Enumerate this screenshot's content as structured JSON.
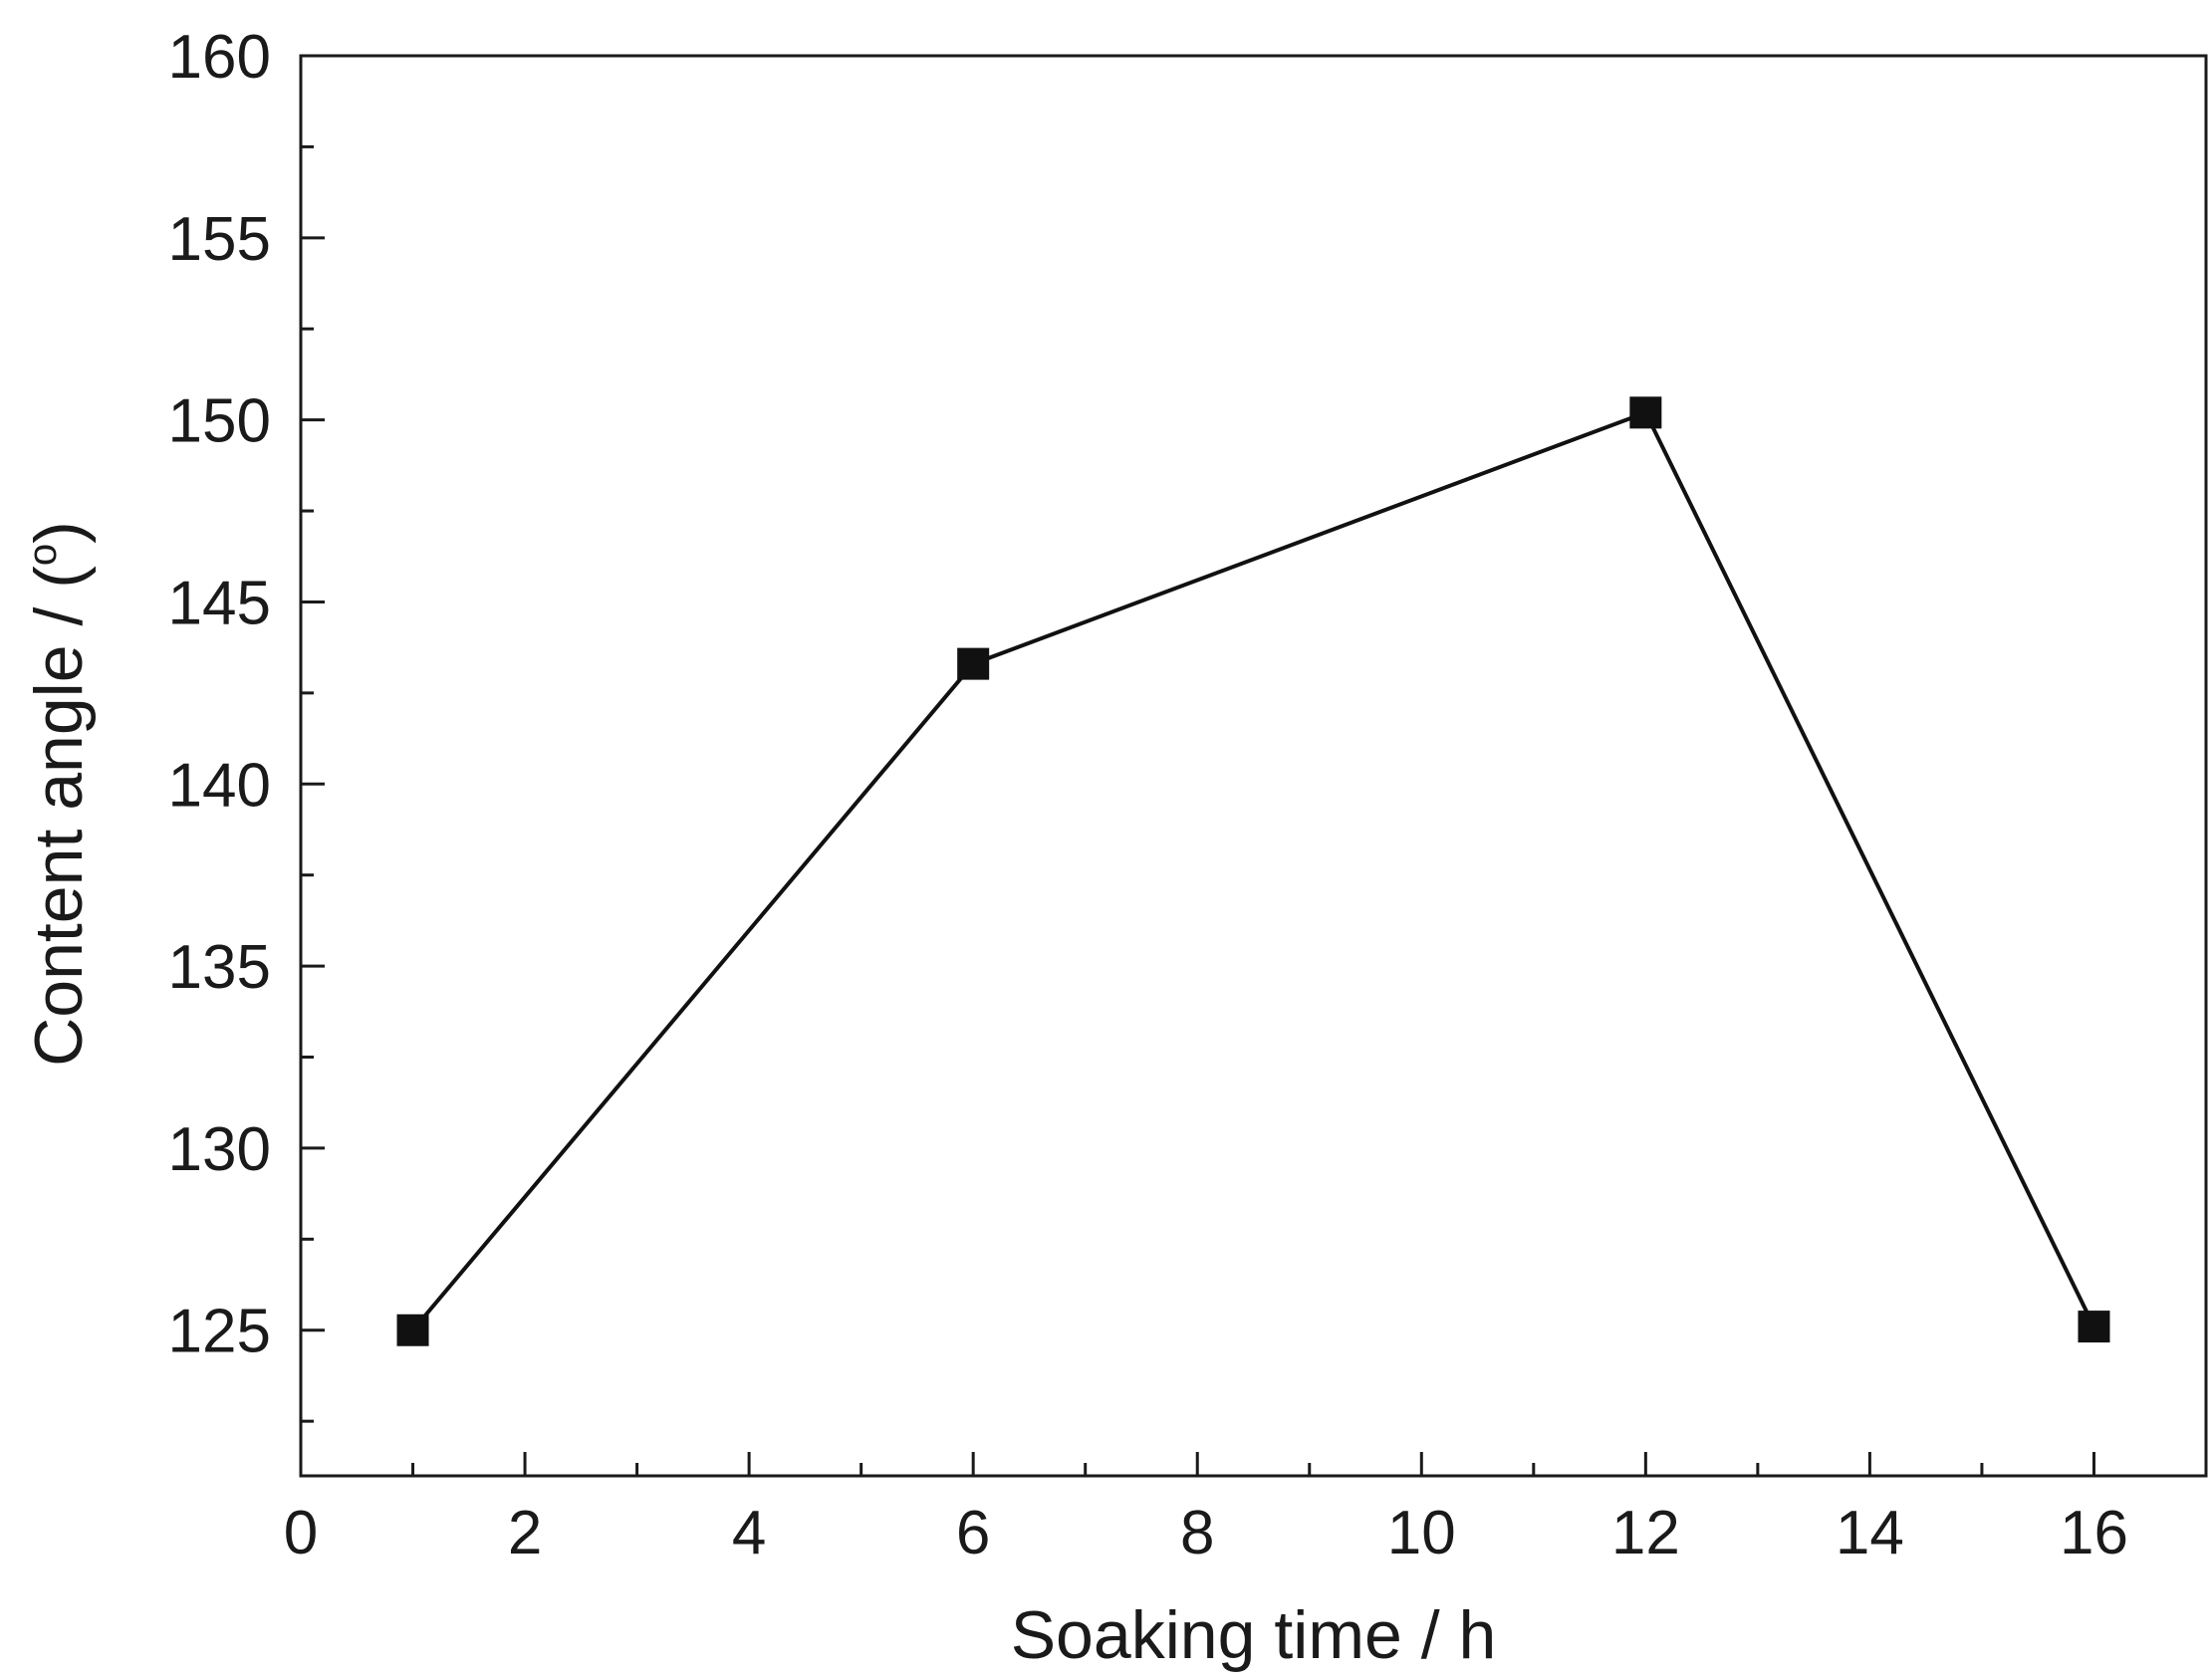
{
  "chart_data": {
    "type": "line",
    "title": "",
    "xlabel": "Soaking time / h",
    "ylabel_prefix": "Content angle / (",
    "ylabel_sup": "o",
    "ylabel_suffix": ")",
    "xlim": [
      0,
      17
    ],
    "ylim": [
      121,
      160
    ],
    "x_ticks": [
      0,
      2,
      4,
      6,
      8,
      10,
      12,
      14,
      16
    ],
    "x_tick_labels": [
      "0",
      "2",
      "4",
      "6",
      "8",
      "10",
      "12",
      "14",
      "16"
    ],
    "x_minor_ticks": [
      1,
      3,
      5,
      7,
      9,
      11,
      13,
      15
    ],
    "y_ticks": [
      125,
      130,
      135,
      140,
      145,
      150,
      155,
      160
    ],
    "y_tick_labels": [
      "125",
      "130",
      "135",
      "140",
      "145",
      "150",
      "155",
      "160"
    ],
    "y_minor_ticks": [
      122.5,
      127.5,
      132.5,
      137.5,
      142.5,
      147.5,
      152.5,
      157.5
    ],
    "grid": false,
    "legend": "none",
    "series": [
      {
        "x": [
          1,
          6,
          12,
          16
        ],
        "y": [
          125.0,
          143.3,
          150.2,
          125.1
        ],
        "marker": "square",
        "color": "#111111"
      }
    ]
  }
}
